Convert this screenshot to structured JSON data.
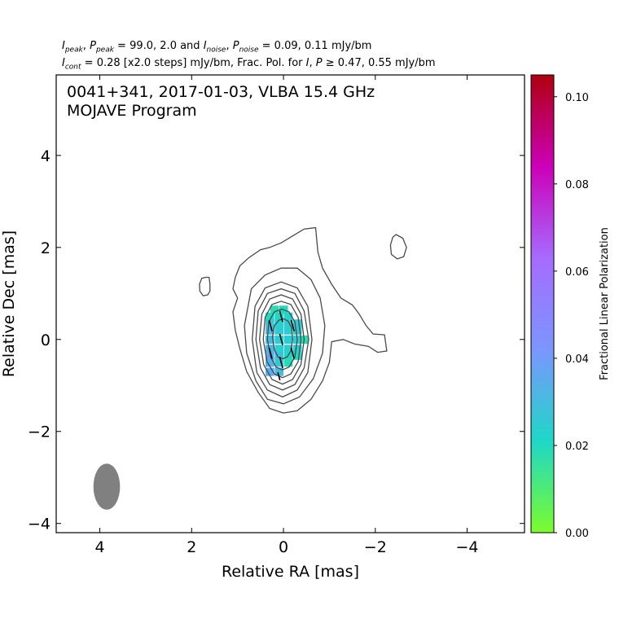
{
  "header": {
    "l1_a": "peak",
    "l1_b": "peak",
    "l1_c": " = 99.0, 2.0 and ",
    "l1_d": "noise",
    "l1_e": "noise",
    "l1_f": " = 0.09, 0.11 mJy/bm",
    "l2_a": "cont",
    "l2_b": " = 0.28 [x2.0 steps] mJy/bm, Frac. Pol. for ",
    "l2_c": " ≥ 0.47, 0.55 mJy/bm",
    "sym_I": "I",
    "sym_P": "P"
  },
  "chart_data": {
    "type": "contour",
    "title_line1": "0041+341, 2017-01-03, VLBA 15.4 GHz",
    "title_line2": "MOJAVE Program",
    "xlabel": "Relative RA [mas]",
    "ylabel": "Relative Dec [mas]",
    "xlim": [
      4.95,
      -5.25
    ],
    "ylim": [
      -4.2,
      5.75
    ],
    "x_ticks": [
      4,
      2,
      0,
      -2,
      -4
    ],
    "x_tick_labels": [
      "4",
      "2",
      "0",
      "−2",
      "−4"
    ],
    "y_ticks": [
      4,
      2,
      0,
      -2,
      -4
    ],
    "y_tick_labels": [
      "4",
      "2",
      "0",
      "−2",
      "−4"
    ],
    "colorbar": {
      "label": "Fractional Linear Polarization",
      "range": [
        0.0,
        0.105
      ],
      "ticks": [
        0.0,
        0.02,
        0.04,
        0.06,
        0.08,
        0.1
      ],
      "tick_labels": [
        "0.00",
        "0.02",
        "0.04",
        "0.06",
        "0.08",
        "0.10"
      ],
      "colors": [
        "#7CFC2C",
        "#1ED7C8",
        "#7B96FF",
        "#A66BFF",
        "#CC00B8",
        "#B0000F"
      ]
    },
    "contours": [
      [
        [
          1.05,
          1.35
        ],
        [
          0.95,
          1.6
        ],
        [
          0.75,
          1.78
        ],
        [
          0.5,
          1.95
        ],
        [
          0.3,
          2.0
        ],
        [
          0.05,
          2.1
        ],
        [
          -0.2,
          2.25
        ],
        [
          -0.45,
          2.4
        ],
        [
          -0.7,
          2.43
        ],
        [
          -0.75,
          1.9
        ],
        [
          -0.85,
          1.55
        ],
        [
          -1.05,
          1.2
        ],
        [
          -1.25,
          0.9
        ],
        [
          -1.5,
          0.75
        ],
        [
          -1.65,
          0.55
        ],
        [
          -1.8,
          0.3
        ],
        [
          -1.95,
          0.12
        ],
        [
          -2.2,
          0.1
        ],
        [
          -2.25,
          -0.25
        ],
        [
          -2.05,
          -0.28
        ],
        [
          -1.85,
          -0.15
        ],
        [
          -1.55,
          -0.1
        ],
        [
          -1.3,
          0.0
        ],
        [
          -1.05,
          -0.05
        ],
        [
          -1.0,
          -0.5
        ],
        [
          -0.85,
          -0.9
        ],
        [
          -0.6,
          -1.3
        ],
        [
          -0.3,
          -1.55
        ],
        [
          0.0,
          -1.6
        ],
        [
          0.3,
          -1.5
        ],
        [
          0.55,
          -1.15
        ],
        [
          0.8,
          -0.7
        ],
        [
          0.95,
          -0.2
        ],
        [
          1.05,
          0.2
        ],
        [
          1.1,
          0.6
        ],
        [
          1.0,
          0.9
        ],
        [
          1.1,
          1.1
        ],
        [
          1.05,
          1.35
        ]
      ],
      [
        [
          0.7,
          1.1
        ],
        [
          0.4,
          1.4
        ],
        [
          0.05,
          1.55
        ],
        [
          -0.3,
          1.55
        ],
        [
          -0.6,
          1.3
        ],
        [
          -0.8,
          0.9
        ],
        [
          -0.9,
          0.3
        ],
        [
          -0.85,
          -0.3
        ],
        [
          -0.65,
          -0.85
        ],
        [
          -0.35,
          -1.25
        ],
        [
          0.0,
          -1.4
        ],
        [
          0.35,
          -1.3
        ],
        [
          0.6,
          -0.9
        ],
        [
          0.8,
          -0.3
        ],
        [
          0.85,
          0.3
        ],
        [
          0.7,
          1.1
        ]
      ],
      [
        [
          0.68,
          0.0
        ],
        [
          0.62,
          0.72
        ],
        [
          0.4,
          1.12
        ],
        [
          0.05,
          1.25
        ],
        [
          -0.3,
          1.12
        ],
        [
          -0.53,
          0.72
        ],
        [
          -0.62,
          0.0
        ],
        [
          -0.53,
          -0.72
        ],
        [
          -0.3,
          -1.1
        ],
        [
          0.02,
          -1.25
        ],
        [
          0.35,
          -1.1
        ],
        [
          0.58,
          -0.72
        ],
        [
          0.68,
          0.0
        ]
      ],
      [
        [
          0.6,
          0.0
        ],
        [
          0.55,
          0.62
        ],
        [
          0.35,
          1.0
        ],
        [
          0.05,
          1.1
        ],
        [
          -0.25,
          1.0
        ],
        [
          -0.45,
          0.62
        ],
        [
          -0.55,
          0.0
        ],
        [
          -0.45,
          -0.62
        ],
        [
          -0.25,
          -0.98
        ],
        [
          0.02,
          -1.1
        ],
        [
          0.3,
          -0.98
        ],
        [
          0.5,
          -0.62
        ],
        [
          0.6,
          0.0
        ]
      ],
      [
        [
          0.52,
          0.0
        ],
        [
          0.47,
          0.55
        ],
        [
          0.3,
          0.88
        ],
        [
          0.05,
          0.97
        ],
        [
          -0.2,
          0.88
        ],
        [
          -0.38,
          0.55
        ],
        [
          -0.45,
          0.0
        ],
        [
          -0.38,
          -0.55
        ],
        [
          -0.2,
          -0.87
        ],
        [
          0.02,
          -0.97
        ],
        [
          0.25,
          -0.87
        ],
        [
          0.43,
          -0.55
        ],
        [
          0.52,
          0.0
        ]
      ],
      [
        [
          0.44,
          0.0
        ],
        [
          0.4,
          0.48
        ],
        [
          0.25,
          0.76
        ],
        [
          0.05,
          0.83
        ],
        [
          -0.16,
          0.76
        ],
        [
          -0.32,
          0.48
        ],
        [
          -0.38,
          0.0
        ],
        [
          -0.32,
          -0.48
        ],
        [
          -0.16,
          -0.75
        ],
        [
          0.02,
          -0.83
        ],
        [
          0.2,
          -0.75
        ],
        [
          0.36,
          -0.48
        ],
        [
          0.44,
          0.0
        ]
      ],
      [
        [
          0.35,
          0.0
        ],
        [
          0.32,
          0.38
        ],
        [
          0.2,
          0.6
        ],
        [
          0.04,
          0.66
        ],
        [
          -0.12,
          0.6
        ],
        [
          -0.25,
          0.38
        ],
        [
          -0.3,
          0.0
        ],
        [
          -0.25,
          -0.38
        ],
        [
          -0.12,
          -0.6
        ],
        [
          0.02,
          -0.66
        ],
        [
          0.16,
          -0.6
        ],
        [
          0.28,
          -0.38
        ],
        [
          0.35,
          0.0
        ]
      ],
      [
        [
          0.24,
          0.05
        ],
        [
          0.2,
          0.3
        ],
        [
          0.1,
          0.42
        ],
        [
          0.0,
          0.45
        ],
        [
          -0.1,
          0.4
        ],
        [
          -0.18,
          0.25
        ],
        [
          -0.2,
          0.0
        ],
        [
          -0.16,
          -0.25
        ],
        [
          -0.08,
          -0.38
        ],
        [
          0.02,
          -0.42
        ],
        [
          0.12,
          -0.38
        ],
        [
          0.2,
          -0.22
        ],
        [
          0.24,
          0.05
        ]
      ],
      [
        [
          1.7,
          1.35
        ],
        [
          1.62,
          1.35
        ],
        [
          1.6,
          1.2
        ],
        [
          1.6,
          1.05
        ],
        [
          1.65,
          0.97
        ],
        [
          1.75,
          0.95
        ],
        [
          1.82,
          1.05
        ],
        [
          1.83,
          1.2
        ],
        [
          1.78,
          1.33
        ],
        [
          1.7,
          1.35
        ]
      ],
      [
        [
          -2.45,
          2.28
        ],
        [
          -2.6,
          2.2
        ],
        [
          -2.68,
          2.0
        ],
        [
          -2.62,
          1.8
        ],
        [
          -2.48,
          1.75
        ],
        [
          -2.35,
          1.85
        ],
        [
          -2.33,
          2.05
        ],
        [
          -2.38,
          2.22
        ],
        [
          -2.45,
          2.28
        ]
      ]
    ],
    "polarization_cells": [
      [
        0.0,
        0.65,
        0.02
      ],
      [
        0.2,
        0.65,
        0.018
      ],
      [
        -0.1,
        0.5,
        0.022
      ],
      [
        0.1,
        0.5,
        0.021
      ],
      [
        0.3,
        0.5,
        0.02
      ],
      [
        -0.3,
        0.35,
        0.025
      ],
      [
        -0.1,
        0.35,
        0.024
      ],
      [
        0.1,
        0.35,
        0.023
      ],
      [
        0.3,
        0.35,
        0.026
      ],
      [
        -0.3,
        0.2,
        0.024
      ],
      [
        -0.1,
        0.2,
        0.024
      ],
      [
        0.1,
        0.2,
        0.025
      ],
      [
        0.3,
        0.2,
        0.03
      ],
      [
        -0.3,
        0.0,
        0.025
      ],
      [
        -0.1,
        0.0,
        0.024
      ],
      [
        0.1,
        0.0,
        0.025
      ],
      [
        0.3,
        0.0,
        0.029
      ],
      [
        -0.45,
        0.0,
        0.018
      ],
      [
        -0.3,
        -0.2,
        0.024
      ],
      [
        -0.1,
        -0.2,
        0.024
      ],
      [
        0.1,
        -0.2,
        0.023
      ],
      [
        0.3,
        -0.2,
        0.032
      ],
      [
        -0.3,
        -0.35,
        0.02
      ],
      [
        -0.1,
        -0.35,
        0.021
      ],
      [
        0.1,
        -0.35,
        0.028
      ],
      [
        0.3,
        -0.35,
        0.035
      ],
      [
        -0.1,
        -0.5,
        0.019
      ],
      [
        0.1,
        -0.5,
        0.026
      ],
      [
        0.3,
        -0.5,
        0.033
      ],
      [
        0.1,
        -0.7,
        0.03
      ],
      [
        0.3,
        -0.7,
        0.036
      ]
    ],
    "evpa_ticks": [
      [
        0.28,
        0.3,
        0.25
      ],
      [
        0.28,
        -0.3,
        0.25
      ],
      [
        0.05,
        0.5,
        0.25
      ],
      [
        0.05,
        0.0,
        0.25
      ],
      [
        0.05,
        -0.5,
        0.25
      ],
      [
        -0.2,
        0.3,
        0.25
      ],
      [
        -0.2,
        -0.3,
        0.25
      ],
      [
        0.1,
        -0.8,
        0.18
      ]
    ],
    "beam": {
      "x": 3.85,
      "y": -3.2,
      "major": 1.0,
      "minor": 0.58
    }
  }
}
